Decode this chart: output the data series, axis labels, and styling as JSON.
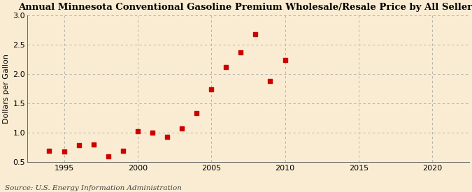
{
  "title": "Annual Minnesota Conventional Gasoline Premium Wholesale/Resale Price by All Sellers",
  "ylabel": "Dollars per Gallon",
  "source": "Source: U.S. Energy Information Administration",
  "years": [
    1994,
    1995,
    1996,
    1997,
    1998,
    1999,
    2000,
    2001,
    2002,
    2003,
    2004,
    2005,
    2006,
    2007,
    2008,
    2009,
    2010
  ],
  "values": [
    0.69,
    0.68,
    0.79,
    0.8,
    0.6,
    0.69,
    1.02,
    1.0,
    0.93,
    1.07,
    1.33,
    1.74,
    2.12,
    2.37,
    2.68,
    1.88,
    2.24
  ],
  "marker_color": "#cc0000",
  "background_color": "#faecd2",
  "xlim": [
    1992.5,
    2022.5
  ],
  "ylim": [
    0.5,
    3.0
  ],
  "xticks": [
    1995,
    2000,
    2005,
    2010,
    2015,
    2020
  ],
  "yticks": [
    0.5,
    1.0,
    1.5,
    2.0,
    2.5,
    3.0
  ],
  "title_fontsize": 9.5,
  "label_fontsize": 8,
  "tick_fontsize": 8,
  "source_fontsize": 7.5
}
